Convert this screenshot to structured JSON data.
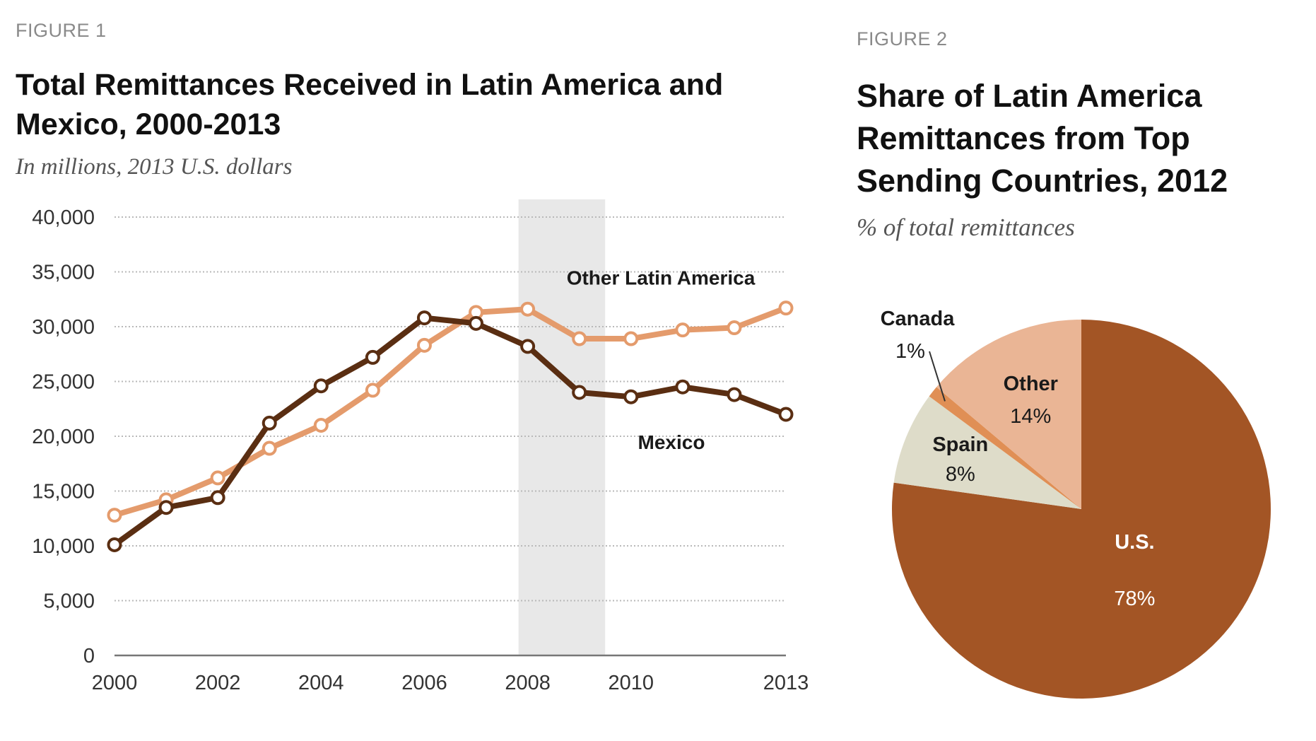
{
  "chart_data": [
    {
      "type": "line",
      "figure_label": "FIGURE 1",
      "title": "Total Remittances Received in Latin America and Mexico, 2000-2013",
      "subtitle": "In millions, 2013 U.S. dollars",
      "xlabel": "",
      "ylabel": "",
      "x": [
        2000,
        2001,
        2002,
        2003,
        2004,
        2005,
        2006,
        2007,
        2008,
        2009,
        2010,
        2011,
        2012,
        2013
      ],
      "x_tick_labels": [
        "2000",
        "2002",
        "2004",
        "2006",
        "2008",
        "2010",
        "2013"
      ],
      "x_tick_values": [
        2000,
        2002,
        2004,
        2006,
        2008,
        2010,
        2013
      ],
      "y_tick_labels": [
        "0",
        "5,000",
        "10,000",
        "15,000",
        "20,000",
        "25,000",
        "30,000",
        "35,000",
        "40,000"
      ],
      "ylim": [
        0,
        40000
      ],
      "grid": true,
      "shaded_range": [
        2008,
        2009.5
      ],
      "series": [
        {
          "name": "Mexico",
          "color": "#5a2e12",
          "values": [
            10100,
            13500,
            14400,
            21200,
            24600,
            27200,
            30800,
            30300,
            28200,
            24000,
            23600,
            24500,
            23800,
            22000
          ]
        },
        {
          "name": "Other Latin America",
          "color": "#e49b6c",
          "values": [
            12800,
            14200,
            16200,
            18900,
            21000,
            24200,
            28300,
            31300,
            31600,
            28900,
            28900,
            29700,
            29900,
            31700
          ]
        }
      ]
    },
    {
      "type": "pie",
      "figure_label": "FIGURE 2",
      "title": "Share of Latin America Remittances from Top Sending Countries, 2012",
      "subtitle": "% of total remittances",
      "slices": [
        {
          "name": "U.S.",
          "value": 78,
          "label": "78%",
          "color": "#a35525"
        },
        {
          "name": "Spain",
          "value": 8,
          "label": "8%",
          "color": "#dedcc9"
        },
        {
          "name": "Canada",
          "value": 1,
          "label": "1%",
          "color": "#e08f55"
        },
        {
          "name": "Other",
          "value": 14,
          "label": "14%",
          "color": "#eab595"
        }
      ]
    }
  ]
}
